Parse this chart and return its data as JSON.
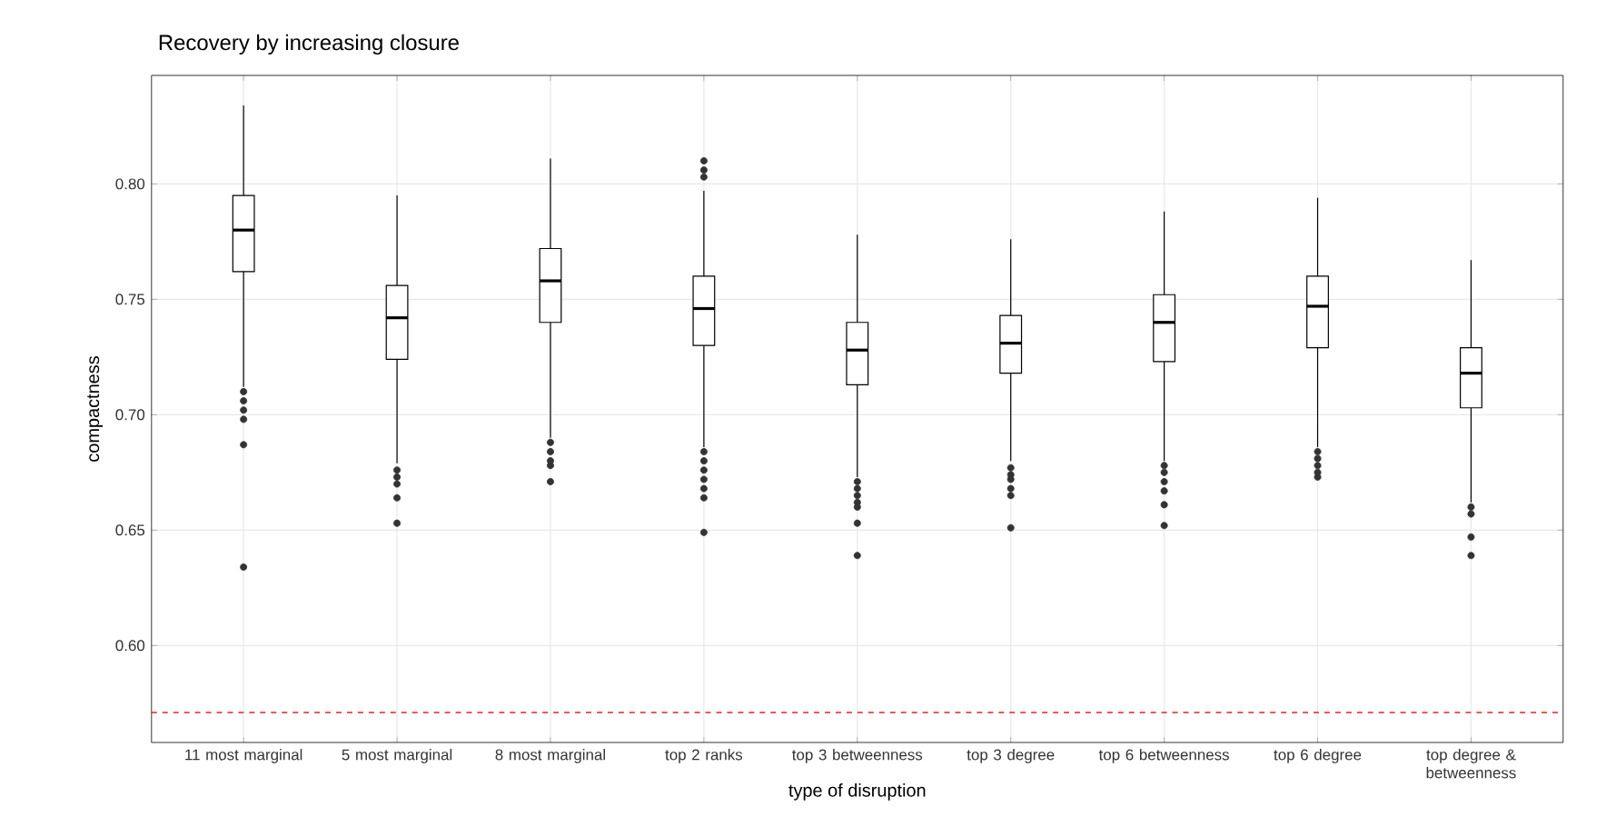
{
  "chart_data": {
    "type": "box",
    "title": "Recovery by increasing closure",
    "xlabel": "type of disruption",
    "ylabel": "compactness",
    "categories": [
      "11 most marginal",
      "5 most marginal",
      "8 most marginal",
      "top 2 ranks",
      "top 3 betweenness",
      "top 3 degree",
      "top 6 betweenness",
      "top 6 degree",
      "top degree & betweenness"
    ],
    "boxes": [
      {
        "low": 0.712,
        "q1": 0.762,
        "median": 0.78,
        "q3": 0.795,
        "high": 0.834,
        "outliers": [
          0.71,
          0.706,
          0.702,
          0.698,
          0.687,
          0.634
        ]
      },
      {
        "low": 0.679,
        "q1": 0.724,
        "median": 0.742,
        "q3": 0.756,
        "high": 0.795,
        "outliers": [
          0.676,
          0.673,
          0.67,
          0.664,
          0.653
        ]
      },
      {
        "low": 0.69,
        "q1": 0.74,
        "median": 0.758,
        "q3": 0.772,
        "high": 0.811,
        "outliers": [
          0.688,
          0.684,
          0.68,
          0.678,
          0.671
        ]
      },
      {
        "low": 0.686,
        "q1": 0.73,
        "median": 0.746,
        "q3": 0.76,
        "high": 0.797,
        "outliers": [
          0.81,
          0.806,
          0.803,
          0.684,
          0.68,
          0.676,
          0.672,
          0.668,
          0.664,
          0.649
        ]
      },
      {
        "low": 0.673,
        "q1": 0.713,
        "median": 0.728,
        "q3": 0.74,
        "high": 0.778,
        "outliers": [
          0.671,
          0.668,
          0.665,
          0.662,
          0.66,
          0.653,
          0.639
        ]
      },
      {
        "low": 0.68,
        "q1": 0.718,
        "median": 0.731,
        "q3": 0.743,
        "high": 0.776,
        "outliers": [
          0.677,
          0.674,
          0.672,
          0.668,
          0.665,
          0.651
        ]
      },
      {
        "low": 0.68,
        "q1": 0.723,
        "median": 0.74,
        "q3": 0.752,
        "high": 0.788,
        "outliers": [
          0.678,
          0.675,
          0.671,
          0.667,
          0.661,
          0.652
        ]
      },
      {
        "low": 0.686,
        "q1": 0.729,
        "median": 0.747,
        "q3": 0.76,
        "high": 0.794,
        "outliers": [
          0.684,
          0.681,
          0.678,
          0.675,
          0.673
        ]
      },
      {
        "low": 0.662,
        "q1": 0.703,
        "median": 0.718,
        "q3": 0.729,
        "high": 0.767,
        "outliers": [
          0.66,
          0.657,
          0.647,
          0.639
        ]
      }
    ],
    "ylim": [
      0.558,
      0.847
    ],
    "yticks": [
      {
        "value": 0.6,
        "label": "0.60"
      },
      {
        "value": 0.65,
        "label": "0.65"
      },
      {
        "value": 0.7,
        "label": "0.70"
      },
      {
        "value": 0.75,
        "label": "0.75"
      },
      {
        "value": 0.8,
        "label": "0.80"
      }
    ],
    "grid": true,
    "ref_lines": [
      {
        "axis": "y",
        "value": 0.571,
        "color": "#d62728",
        "line_style": "dashed"
      }
    ]
  }
}
